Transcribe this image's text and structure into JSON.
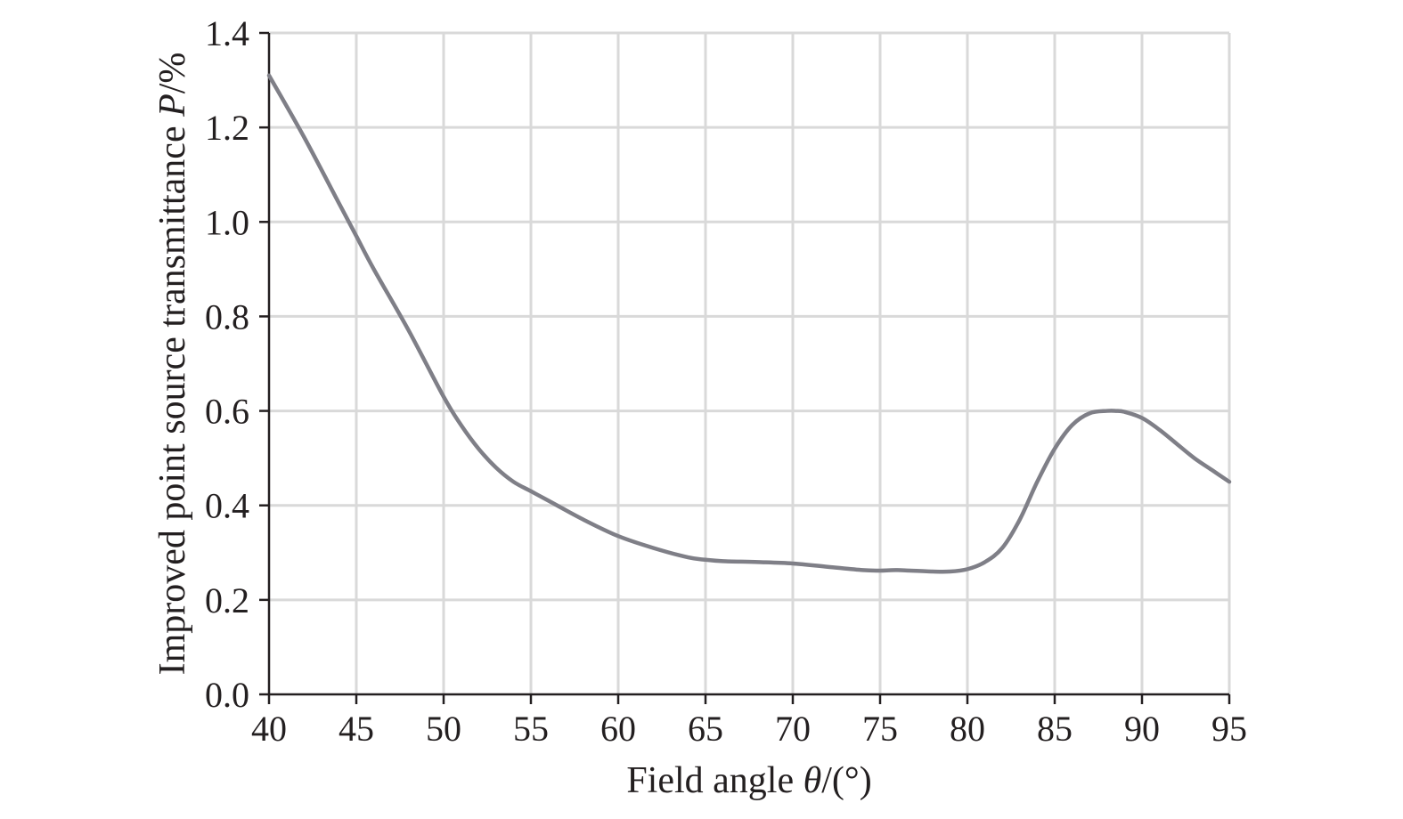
{
  "chart_data": {
    "type": "line",
    "xlabel": {
      "prefix": "Field angle ",
      "symbol": "θ",
      "suffix": "/(°)"
    },
    "ylabel": {
      "prefix": "Improved point source transmittance ",
      "symbol": "P",
      "suffix": "/%"
    },
    "xlim": [
      40,
      95
    ],
    "ylim": [
      0,
      1.4
    ],
    "xticks": [
      40,
      45,
      50,
      55,
      60,
      65,
      70,
      75,
      80,
      85,
      90,
      95
    ],
    "yticks": [
      "0.0",
      "0.2",
      "0.4",
      "0.6",
      "0.8",
      "1.0",
      "1.2",
      "1.4"
    ],
    "grid": true,
    "legend": "none",
    "colors": {
      "line": "#7f7f87",
      "grid": "#d9d9d9",
      "axis": "#231f20"
    },
    "series": [
      {
        "x": [
          40,
          42,
          44,
          45,
          46,
          48,
          50,
          51,
          52,
          53,
          54,
          55,
          56,
          58,
          60,
          62,
          64,
          65,
          66,
          68,
          70,
          72,
          74,
          75,
          76,
          78,
          79,
          80,
          81,
          82,
          83,
          84,
          85,
          86,
          87,
          88,
          88.5,
          89,
          90,
          91,
          92,
          93,
          94,
          95
        ],
        "y": [
          1.31,
          1.18,
          1.04,
          0.97,
          0.9,
          0.77,
          0.63,
          0.57,
          0.52,
          0.48,
          0.45,
          0.43,
          0.41,
          0.37,
          0.335,
          0.31,
          0.29,
          0.285,
          0.282,
          0.28,
          0.277,
          0.27,
          0.263,
          0.262,
          0.263,
          0.26,
          0.26,
          0.265,
          0.28,
          0.31,
          0.37,
          0.45,
          0.52,
          0.57,
          0.595,
          0.6,
          0.6,
          0.598,
          0.585,
          0.56,
          0.53,
          0.5,
          0.475,
          0.45
        ]
      }
    ]
  }
}
